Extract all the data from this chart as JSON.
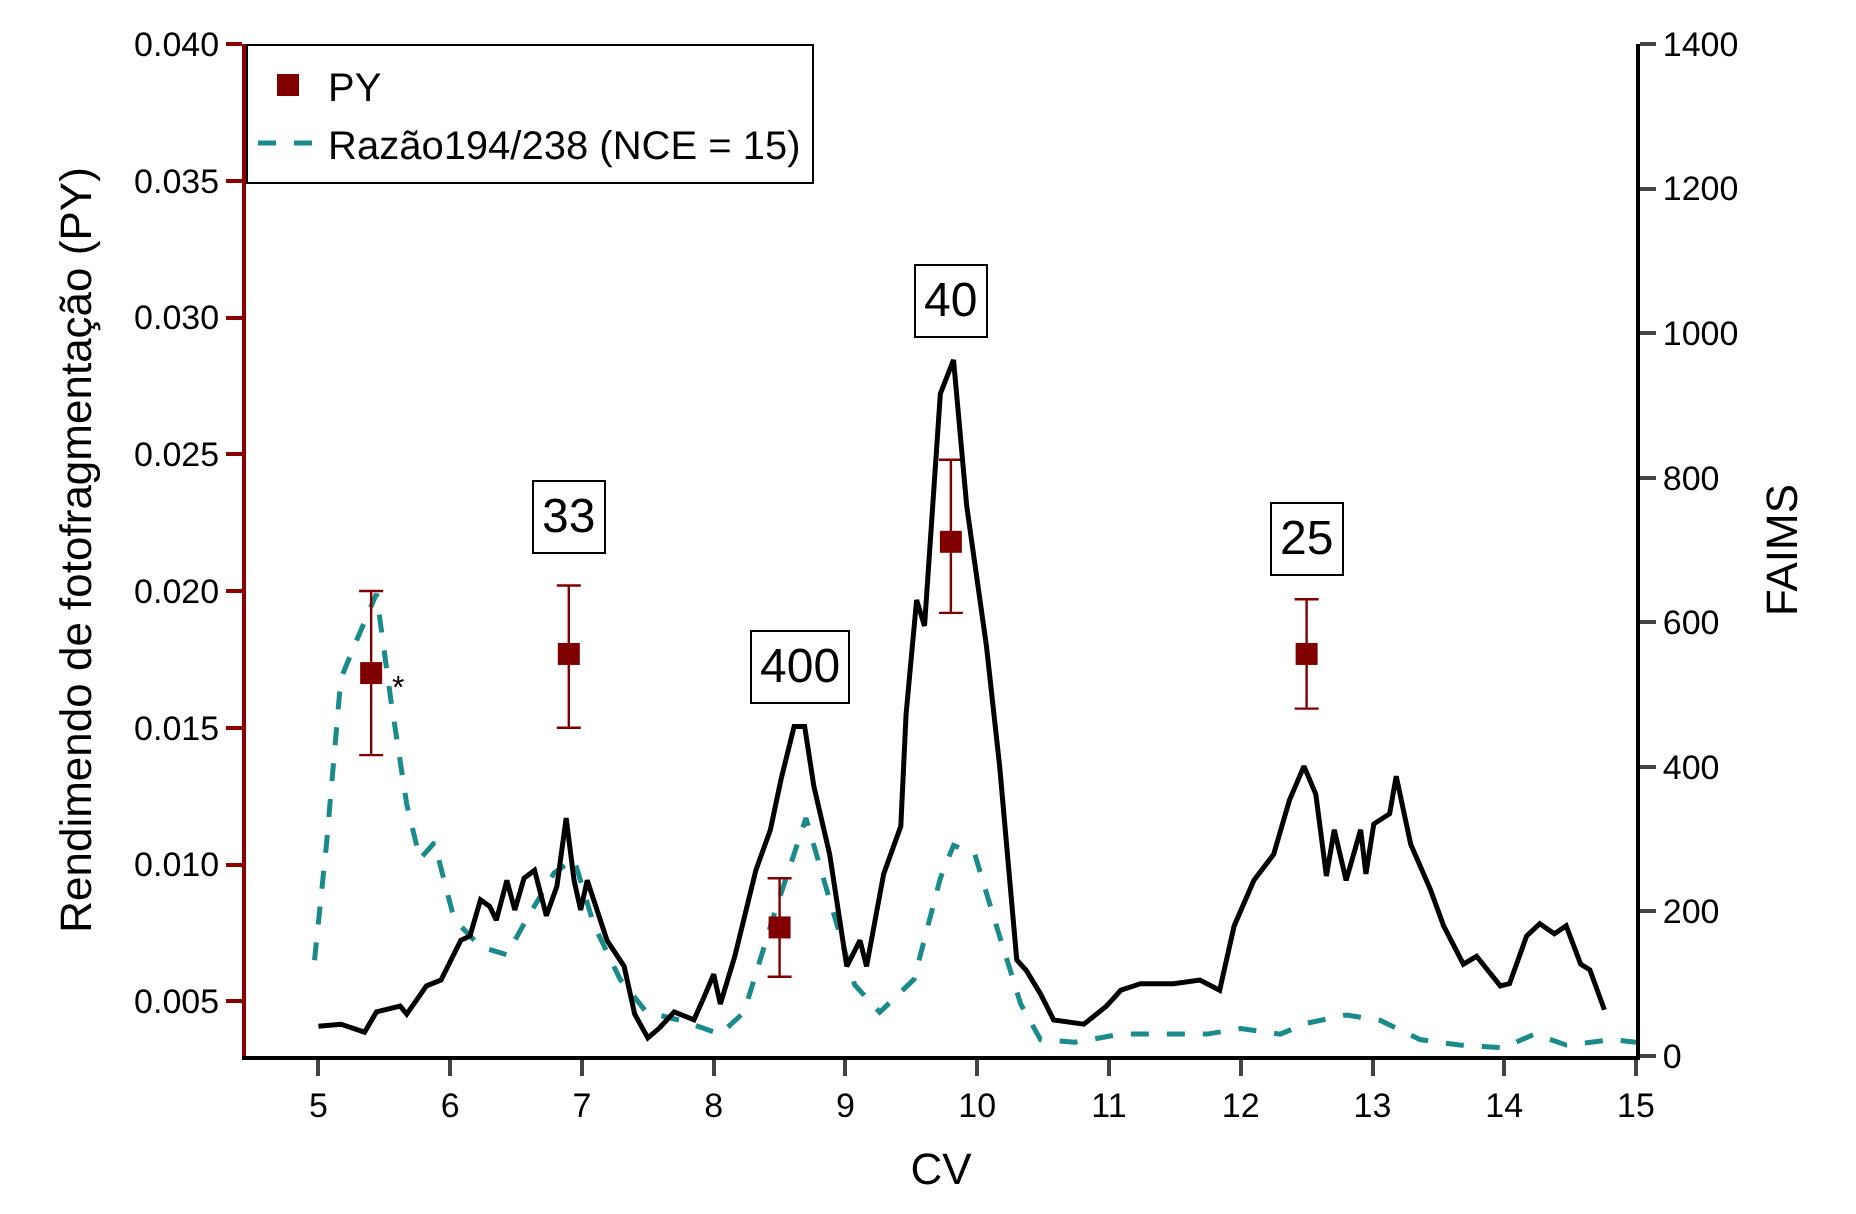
{
  "chart_data": {
    "type": "line",
    "xlabel": "CV",
    "ylabel": "Rendimendo de fotofragmentação (PY)",
    "y2label": "FAIMS",
    "xlim": [
      4.45,
      15
    ],
    "xticks": [
      5,
      6,
      7,
      8,
      9,
      10,
      11,
      12,
      13,
      14,
      15
    ],
    "ylim": [
      0.003,
      0.04
    ],
    "yticks": [
      0.005,
      {
        "value": 0.01,
        "label": "0.010"
      },
      0.015,
      {
        "value": 0.02,
        "label": "0.020"
      },
      0.025,
      {
        "value": 0.03,
        "label": "0.030"
      },
      0.035,
      {
        "value": 0.04,
        "label": "0.040"
      }
    ],
    "y2lim": [
      0,
      1400
    ],
    "y2ticks": [
      0,
      200,
      400,
      600,
      800,
      1000,
      1200,
      1400
    ],
    "legend": "top left",
    "series": [
      {
        "axis": "y2",
        "color": "#000000",
        "line_style": "solid",
        "marker": "none",
        "x": [
          5.0,
          5.17,
          5.35,
          5.44,
          5.62,
          5.67,
          5.82,
          5.93,
          6.08,
          6.15,
          6.23,
          6.3,
          6.35,
          6.43,
          6.49,
          6.56,
          6.64,
          6.73,
          6.81,
          6.88,
          6.94,
          6.99,
          7.04,
          7.19,
          7.32,
          7.4,
          7.5,
          7.59,
          7.7,
          7.85,
          7.93,
          8.0,
          8.05,
          8.16,
          8.32,
          8.43,
          8.51,
          8.61,
          8.69,
          8.76,
          8.88,
          9.01,
          9.11,
          9.16,
          9.29,
          9.42,
          9.46,
          9.54,
          9.6,
          9.72,
          9.82,
          9.92,
          10.07,
          10.17,
          10.3,
          10.37,
          10.48,
          10.58,
          10.81,
          10.98,
          11.09,
          11.24,
          11.49,
          11.69,
          11.84,
          11.95,
          12.1,
          12.25,
          12.37,
          12.48,
          12.57,
          12.65,
          12.71,
          12.8,
          12.91,
          12.95,
          13.01,
          13.13,
          13.18,
          13.29,
          13.44,
          13.54,
          13.69,
          13.79,
          13.97,
          14.04,
          14.17,
          14.27,
          14.38,
          14.47,
          14.58,
          14.65,
          14.76
        ],
        "values": [
          41,
          44,
          33,
          61,
          69,
          58,
          97,
          105,
          160,
          166,
          216,
          207,
          188,
          243,
          202,
          246,
          257,
          194,
          235,
          329,
          243,
          202,
          243,
          160,
          124,
          58,
          25,
          39,
          61,
          50,
          83,
          113,
          72,
          138,
          257,
          313,
          382,
          456,
          456,
          373,
          279,
          124,
          160,
          124,
          252,
          318,
          473,
          631,
          595,
          916,
          963,
          761,
          567,
          401,
          133,
          119,
          86,
          50,
          44,
          69,
          91,
          100,
          100,
          105,
          91,
          180,
          243,
          279,
          354,
          401,
          362,
          249,
          313,
          243,
          313,
          252,
          321,
          335,
          387,
          293,
          230,
          180,
          127,
          138,
          97,
          100,
          166,
          183,
          169,
          180,
          127,
          119,
          64
        ]
      },
      {
        "type": "line",
        "axis": "y",
        "name": "Razão194/238 (NCE = 15)",
        "color": "#1a8a8a",
        "line_style": "dashed",
        "marker": "none",
        "x": [
          4.97,
          5.06,
          5.17,
          5.29,
          5.44,
          5.55,
          5.67,
          5.77,
          5.88,
          6.03,
          6.23,
          6.43,
          6.58,
          6.79,
          6.94,
          7.09,
          7.29,
          7.49,
          7.75,
          8.05,
          8.23,
          8.46,
          8.7,
          8.85,
          9.07,
          9.26,
          9.52,
          9.72,
          9.82,
          9.98,
          10.13,
          10.33,
          10.48,
          10.74,
          11.09,
          11.39,
          11.74,
          12.0,
          12.3,
          12.5,
          12.8,
          13.06,
          13.36,
          13.66,
          13.99,
          14.23,
          14.47,
          14.83,
          15.0
        ],
        "values": [
          0.0065,
          0.0107,
          0.0168,
          0.0182,
          0.0199,
          0.016,
          0.0122,
          0.0102,
          0.0108,
          0.008,
          0.007,
          0.0067,
          0.008,
          0.0097,
          0.0102,
          0.0078,
          0.0058,
          0.0046,
          0.0043,
          0.0038,
          0.0046,
          0.0082,
          0.0117,
          0.0092,
          0.0056,
          0.0046,
          0.0058,
          0.0095,
          0.0107,
          0.0104,
          0.008,
          0.0049,
          0.0036,
          0.0035,
          0.0038,
          0.0038,
          0.0038,
          0.004,
          0.0038,
          0.0042,
          0.0045,
          0.0043,
          0.0036,
          0.0034,
          0.0033,
          0.0038,
          0.0034,
          0.0036,
          0.0035
        ]
      },
      {
        "type": "scatter",
        "axis": "y",
        "name": "PY",
        "color": "#800000",
        "marker": "square",
        "x": [
          5.4,
          6.9,
          8.5,
          9.8,
          12.5
        ],
        "values": [
          0.017,
          0.0177,
          0.0077,
          0.0218,
          0.0177
        ],
        "errors": [
          [
            0.014,
            0.02
          ],
          [
            0.015,
            0.0202
          ],
          [
            0.0059,
            0.0095
          ],
          [
            0.0192,
            0.0248
          ],
          [
            0.0157,
            0.0197
          ]
        ]
      }
    ],
    "annotations": [
      {
        "text": "*",
        "x": 5.6,
        "y": 0.0164
      },
      {
        "text": "33",
        "x": 6.9,
        "y": 0.0205
      },
      {
        "text": "400",
        "x": 8.65,
        "y": 0.015
      },
      {
        "text": "40",
        "x": 9.8,
        "y": 0.0284
      },
      {
        "text": "25",
        "x": 12.5,
        "y": 0.0197
      }
    ]
  }
}
